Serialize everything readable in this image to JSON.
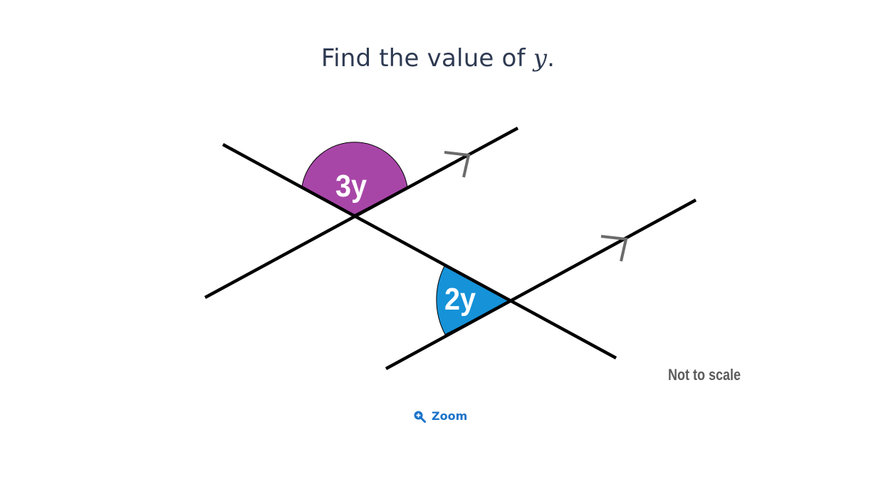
{
  "question": {
    "prefix": "Find the value of ",
    "variable": "y",
    "suffix": "."
  },
  "diagram": {
    "angle_top_label": "3y",
    "angle_bottom_label": "2y",
    "note": "Not to scale",
    "colors": {
      "angle_top": "#a846a8",
      "angle_bottom": "#1592d8",
      "line": "#000000",
      "arrow": "#6b6b6b"
    }
  },
  "zoom": {
    "label": "Zoom",
    "icon": "zoom-in-icon"
  }
}
